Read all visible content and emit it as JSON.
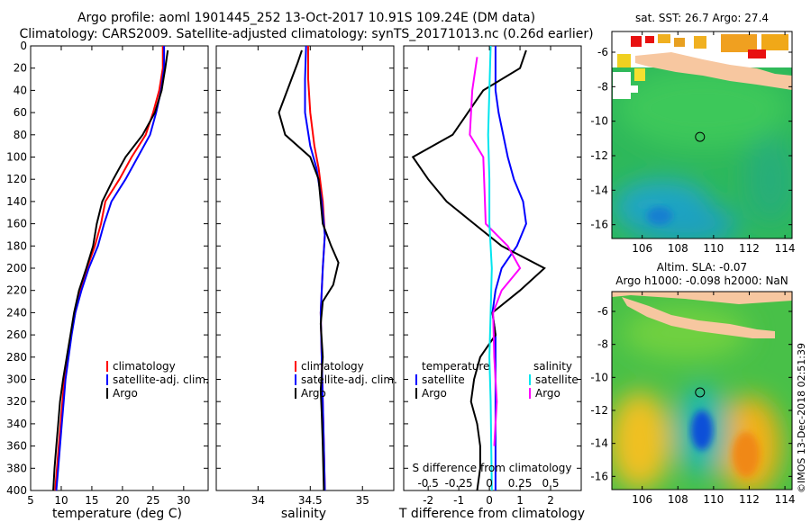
{
  "header": {
    "line1": "Argo profile: aoml 1901445_252 13-Oct-2017 10.91S 109.24E (DM data)",
    "line2": "Climatology: CARS2009. Satellite-adjusted climatology: synTS_20171013.nc (0.26d earlier)"
  },
  "colors": {
    "climatology": "#ff0000",
    "satellite": "#0000ff",
    "argo": "#000000",
    "salinity_diff": "#ff00ff",
    "salinity_sat": "#00e5ee"
  },
  "depth_axis": {
    "ylim": [
      0,
      400
    ],
    "ticks": [
      0,
      20,
      40,
      60,
      80,
      100,
      120,
      140,
      160,
      180,
      200,
      220,
      240,
      260,
      280,
      300,
      320,
      340,
      360,
      380,
      400
    ]
  },
  "chart_data": [
    {
      "type": "line",
      "id": "temp",
      "xlabel": "temperature (deg C)",
      "xlim": [
        5,
        34
      ],
      "xticks": [
        5,
        10,
        15,
        20,
        25,
        30
      ],
      "legend": [
        "climatology",
        "satellite-adj. clim.",
        "Argo"
      ],
      "series": [
        {
          "name": "climatology",
          "color": "#ff0000",
          "points": [
            [
              26.6,
              0
            ],
            [
              26.6,
              20
            ],
            [
              26,
              40
            ],
            [
              25,
              60
            ],
            [
              23.8,
              80
            ],
            [
              21.5,
              100
            ],
            [
              19.5,
              120
            ],
            [
              17.2,
              140
            ],
            [
              16.5,
              160
            ],
            [
              15.5,
              180
            ],
            [
              14.2,
              200
            ],
            [
              13.2,
              220
            ],
            [
              12.3,
              240
            ],
            [
              11.6,
              260
            ],
            [
              11,
              280
            ],
            [
              10.5,
              300
            ],
            [
              10.2,
              320
            ],
            [
              9.9,
              340
            ],
            [
              9.6,
              360
            ],
            [
              9.3,
              380
            ],
            [
              9,
              400
            ]
          ]
        },
        {
          "name": "satellite-adj. clim.",
          "color": "#0000ff",
          "points": [
            [
              26.8,
              0
            ],
            [
              26.8,
              20
            ],
            [
              26.3,
              40
            ],
            [
              25.5,
              60
            ],
            [
              24.5,
              80
            ],
            [
              22.5,
              100
            ],
            [
              20.5,
              120
            ],
            [
              18.2,
              140
            ],
            [
              17,
              160
            ],
            [
              16,
              180
            ],
            [
              14.5,
              200
            ],
            [
              13.3,
              220
            ],
            [
              12.3,
              240
            ],
            [
              11.7,
              260
            ],
            [
              11.2,
              280
            ],
            [
              10.7,
              300
            ],
            [
              10.4,
              320
            ],
            [
              10.1,
              340
            ],
            [
              9.8,
              360
            ],
            [
              9.5,
              380
            ],
            [
              9.2,
              400
            ]
          ]
        },
        {
          "name": "Argo",
          "color": "#000000",
          "points": [
            [
              27.4,
              4
            ],
            [
              27,
              20
            ],
            [
              26.4,
              40
            ],
            [
              25.3,
              60
            ],
            [
              23.3,
              80
            ],
            [
              20.5,
              100
            ],
            [
              18.5,
              120
            ],
            [
              16.7,
              140
            ],
            [
              15.8,
              160
            ],
            [
              15.2,
              180
            ],
            [
              14.1,
              200
            ],
            [
              12.9,
              220
            ],
            [
              12.1,
              240
            ],
            [
              11.5,
              260
            ],
            [
              10.9,
              280
            ],
            [
              10.3,
              300
            ],
            [
              9.8,
              320
            ],
            [
              9.5,
              340
            ],
            [
              9.2,
              360
            ],
            [
              8.9,
              380
            ],
            [
              8.7,
              400
            ]
          ]
        }
      ]
    },
    {
      "type": "line",
      "id": "sal",
      "xlabel": "salinity",
      "xlim": [
        33.6,
        35.3
      ],
      "xticks": [
        34,
        34.5,
        35
      ],
      "xtick_labels": [
        "34",
        "34.5",
        "35"
      ],
      "legend": [
        "climatology",
        "satellite-adj. clim.",
        "Argo"
      ],
      "series": [
        {
          "name": "climatology",
          "color": "#ff0000",
          "points": [
            [
              34.48,
              0
            ],
            [
              34.48,
              30
            ],
            [
              34.5,
              60
            ],
            [
              34.54,
              90
            ],
            [
              34.58,
              110
            ],
            [
              34.62,
              140
            ],
            [
              34.64,
              170
            ],
            [
              34.62,
              200
            ],
            [
              34.6,
              240
            ],
            [
              34.61,
              280
            ],
            [
              34.62,
              320
            ],
            [
              34.63,
              360
            ],
            [
              34.64,
              400
            ]
          ]
        },
        {
          "name": "satellite-adj. clim.",
          "color": "#0000ff",
          "points": [
            [
              34.46,
              0
            ],
            [
              34.45,
              30
            ],
            [
              34.45,
              60
            ],
            [
              34.5,
              90
            ],
            [
              34.56,
              110
            ],
            [
              34.61,
              140
            ],
            [
              34.64,
              170
            ],
            [
              34.62,
              200
            ],
            [
              34.6,
              240
            ],
            [
              34.61,
              280
            ],
            [
              34.62,
              320
            ],
            [
              34.63,
              360
            ],
            [
              34.64,
              400
            ]
          ]
        },
        {
          "name": "Argo",
          "color": "#000000",
          "points": [
            [
              34.42,
              4
            ],
            [
              34.38,
              15
            ],
            [
              34.28,
              40
            ],
            [
              34.2,
              60
            ],
            [
              34.26,
              80
            ],
            [
              34.5,
              100
            ],
            [
              34.58,
              120
            ],
            [
              34.6,
              140
            ],
            [
              34.62,
              160
            ],
            [
              34.7,
              180
            ],
            [
              34.77,
              195
            ],
            [
              34.72,
              215
            ],
            [
              34.62,
              230
            ],
            [
              34.6,
              250
            ],
            [
              34.62,
              280
            ],
            [
              34.6,
              310
            ],
            [
              34.61,
              330
            ],
            [
              34.62,
              360
            ],
            [
              34.63,
              400
            ]
          ]
        }
      ]
    },
    {
      "type": "line",
      "id": "diff",
      "xlabel": "T difference from climatology",
      "xlim": [
        -2.8,
        3
      ],
      "xticks": [
        -2,
        -1,
        0,
        1,
        2
      ],
      "top_xlabel": "S difference from climatology",
      "top_xticks": [
        -0.5,
        -0.25,
        0,
        0.25,
        0.5
      ],
      "top_xtick_labels": [
        "-0.5",
        "-0.25",
        "0",
        "0.25",
        "0.5"
      ],
      "top_xscale": 4,
      "legend_temperature": {
        "title": "temperature",
        "items": [
          "satellite",
          "Argo"
        ]
      },
      "legend_salinity": {
        "title": "salinity",
        "items": [
          "satellite",
          "Argo"
        ]
      },
      "series": [
        {
          "name": "temperature satellite",
          "color": "#0000ff",
          "points": [
            [
              0.2,
              0
            ],
            [
              0.2,
              40
            ],
            [
              0.3,
              60
            ],
            [
              0.6,
              100
            ],
            [
              0.8,
              120
            ],
            [
              1.1,
              140
            ],
            [
              1.2,
              160
            ],
            [
              0.9,
              180
            ],
            [
              0.4,
              200
            ],
            [
              0.2,
              220
            ],
            [
              0.1,
              240
            ],
            [
              0.2,
              260
            ],
            [
              0.2,
              280
            ],
            [
              0.2,
              300
            ],
            [
              0.2,
              320
            ],
            [
              0.2,
              340
            ],
            [
              0.2,
              360
            ],
            [
              0.2,
              380
            ],
            [
              0.2,
              400
            ]
          ]
        },
        {
          "name": "temperature Argo",
          "color": "#000000",
          "points": [
            [
              1.2,
              4
            ],
            [
              1.0,
              20
            ],
            [
              -0.2,
              40
            ],
            [
              -0.7,
              60
            ],
            [
              -1.2,
              80
            ],
            [
              -2.5,
              100
            ],
            [
              -2,
              120
            ],
            [
              -1.4,
              140
            ],
            [
              -0.5,
              160
            ],
            [
              0.4,
              180
            ],
            [
              1.8,
              200
            ],
            [
              1.0,
              220
            ],
            [
              0.1,
              240
            ],
            [
              0.2,
              260
            ],
            [
              -0.3,
              280
            ],
            [
              -0.5,
              300
            ],
            [
              -0.6,
              320
            ],
            [
              -0.4,
              340
            ],
            [
              -0.3,
              360
            ],
            [
              -0.3,
              380
            ],
            [
              -0.4,
              400
            ]
          ]
        },
        {
          "name": "salinity Argo",
          "color": "#ff00ff",
          "points": [
            [
              -0.1,
              10
            ],
            [
              -0.14,
              40
            ],
            [
              -0.16,
              80
            ],
            [
              -0.05,
              100
            ],
            [
              -0.04,
              130
            ],
            [
              -0.03,
              160
            ],
            [
              0.15,
              180
            ],
            [
              0.25,
              200
            ],
            [
              0.1,
              220
            ],
            [
              0.03,
              240
            ],
            [
              0.04,
              280
            ],
            [
              0.06,
              320
            ],
            [
              0.04,
              360
            ]
          ]
        },
        {
          "name": "salinity satellite",
          "color": "#00e5ee",
          "points": [
            [
              0.01,
              0
            ],
            [
              0,
              40
            ],
            [
              -0.01,
              80
            ],
            [
              0,
              120
            ],
            [
              0,
              160
            ],
            [
              0.02,
              200
            ],
            [
              0.01,
              240
            ],
            [
              0,
              280
            ],
            [
              0.01,
              320
            ],
            [
              0.02,
              400
            ]
          ]
        }
      ]
    },
    {
      "type": "heatmap",
      "id": "sst_map",
      "title": "sat. SST: 26.7 Argo: 27.4",
      "xlim": [
        104.3,
        114.4
      ],
      "ylim": [
        -16.8,
        -4.8
      ],
      "xticks": [
        106,
        108,
        110,
        112,
        114
      ],
      "yticks": [
        -6,
        -8,
        -10,
        -12,
        -14,
        -16
      ],
      "argo_location": [
        109.24,
        -10.91
      ]
    },
    {
      "type": "heatmap",
      "id": "sla_map",
      "title_line1": "Altim. SLA: -0.07",
      "title_line2": "Argo h1000: -0.098 h2000: NaN",
      "xlim": [
        104.3,
        114.4
      ],
      "ylim": [
        -16.8,
        -4.8
      ],
      "xticks": [
        106,
        108,
        110,
        112,
        114
      ],
      "yticks": [
        -6,
        -8,
        -10,
        -12,
        -14,
        -16
      ],
      "argo_location": [
        109.24,
        -10.91
      ]
    }
  ],
  "watermark": "©IMOS 13-Dec-2018 02:51:39"
}
